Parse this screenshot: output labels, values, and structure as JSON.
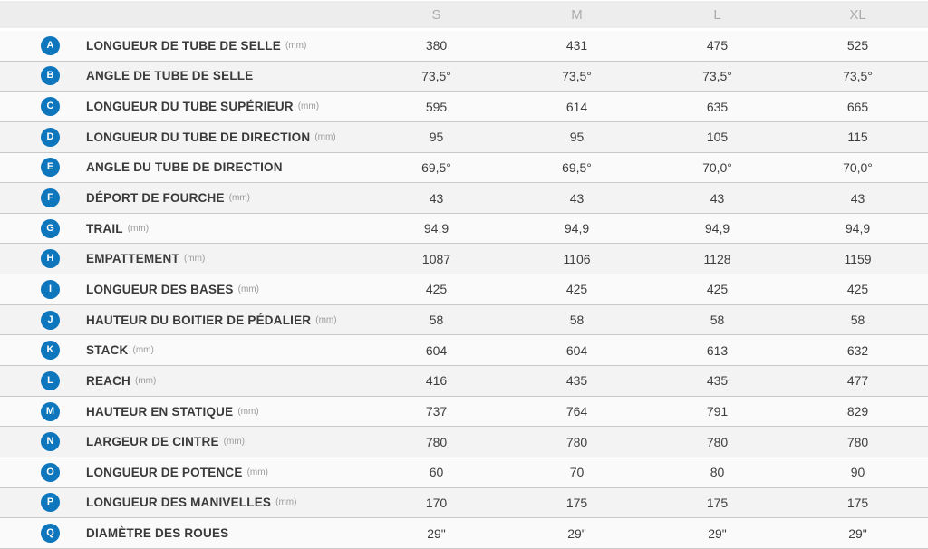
{
  "colors": {
    "badge_blue": "#0e76bd",
    "header_bg": "#ededed",
    "header_text": "#ababab",
    "row_odd": "#fafafa",
    "row_even": "#f3f3f3",
    "separator": "#c9c9c9",
    "label_text": "#3a3a3a",
    "unit_text": "#9b9b9b",
    "value_text": "#3d3d3d"
  },
  "table": {
    "columns": [
      "S",
      "M",
      "L",
      "XL"
    ],
    "rows": [
      {
        "letter": "A",
        "label": "LONGUEUR DE TUBE DE SELLE",
        "unit": "(mm)",
        "values": [
          "380",
          "431",
          "475",
          "525"
        ]
      },
      {
        "letter": "B",
        "label": "ANGLE DE TUBE DE SELLE",
        "unit": "",
        "values": [
          "73,5°",
          "73,5°",
          "73,5°",
          "73,5°"
        ]
      },
      {
        "letter": "C",
        "label": "LONGUEUR DU TUBE SUPÉRIEUR",
        "unit": "(mm)",
        "values": [
          "595",
          "614",
          "635",
          "665"
        ]
      },
      {
        "letter": "D",
        "label": "LONGUEUR DU TUBE DE DIRECTION",
        "unit": "(mm)",
        "values": [
          "95",
          "95",
          "105",
          "115"
        ]
      },
      {
        "letter": "E",
        "label": "ANGLE DU TUBE DE DIRECTION",
        "unit": "",
        "values": [
          "69,5°",
          "69,5°",
          "70,0°",
          "70,0°"
        ]
      },
      {
        "letter": "F",
        "label": "DÉPORT DE FOURCHE",
        "unit": "(mm)",
        "values": [
          "43",
          "43",
          "43",
          "43"
        ]
      },
      {
        "letter": "G",
        "label": "TRAIL",
        "unit": "(mm)",
        "values": [
          "94,9",
          "94,9",
          "94,9",
          "94,9"
        ]
      },
      {
        "letter": "H",
        "label": "EMPATTEMENT",
        "unit": "(mm)",
        "values": [
          "1087",
          "1106",
          "1128",
          "1159"
        ]
      },
      {
        "letter": "I",
        "label": "LONGUEUR DES BASES",
        "unit": "(mm)",
        "values": [
          "425",
          "425",
          "425",
          "425"
        ]
      },
      {
        "letter": "J",
        "label": "HAUTEUR DU BOITIER DE PÉDALIER",
        "unit": "(mm)",
        "values": [
          "58",
          "58",
          "58",
          "58"
        ]
      },
      {
        "letter": "K",
        "label": "STACK",
        "unit": "(mm)",
        "values": [
          "604",
          "604",
          "613",
          "632"
        ]
      },
      {
        "letter": "L",
        "label": "REACH",
        "unit": "(mm)",
        "values": [
          "416",
          "435",
          "435",
          "477"
        ]
      },
      {
        "letter": "M",
        "label": "HAUTEUR EN STATIQUE",
        "unit": "(mm)",
        "values": [
          "737",
          "764",
          "791",
          "829"
        ]
      },
      {
        "letter": "N",
        "label": "LARGEUR DE CINTRE",
        "unit": "(mm)",
        "values": [
          "780",
          "780",
          "780",
          "780"
        ]
      },
      {
        "letter": "O",
        "label": "LONGUEUR DE POTENCE",
        "unit": "(mm)",
        "values": [
          "60",
          "70",
          "80",
          "90"
        ]
      },
      {
        "letter": "P",
        "label": "LONGUEUR DES MANIVELLES",
        "unit": "(mm)",
        "values": [
          "170",
          "175",
          "175",
          "175"
        ]
      },
      {
        "letter": "Q",
        "label": "DIAMÈTRE DES ROUES",
        "unit": "",
        "values": [
          "29\"",
          "29\"",
          "29\"",
          "29\""
        ]
      }
    ]
  }
}
